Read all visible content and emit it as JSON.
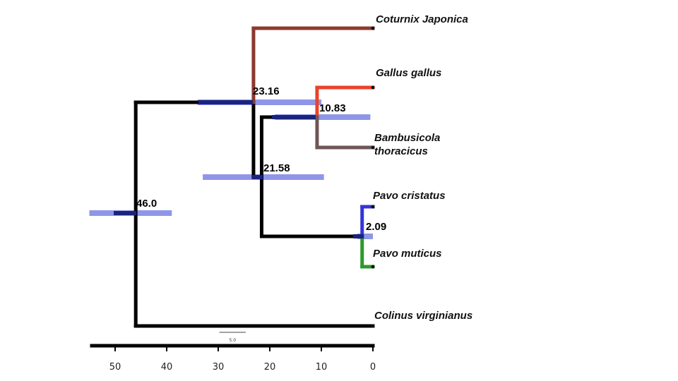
{
  "diagram": {
    "type": "time-calibrated phylogenetic tree",
    "taxa": [
      {
        "id": "coturnix",
        "lines": [
          "Coturnix Japonica"
        ],
        "color": "#8b3a2f"
      },
      {
        "id": "gallus",
        "lines": [
          "Gallus gallus"
        ],
        "color": "#e8432d"
      },
      {
        "id": "bambusicola",
        "lines": [
          "Bambusicola",
          "thoracicus"
        ],
        "color": "#6e5656"
      },
      {
        "id": "pavo_cristatus",
        "lines": [
          "Pavo cristatus"
        ],
        "color": "#3434d8"
      },
      {
        "id": "pavo_muticus",
        "lines": [
          "Pavo muticus"
        ],
        "color": "#2c9a2c"
      },
      {
        "id": "colinus",
        "lines": [
          "Colinus virginianus"
        ],
        "color": "#000000"
      }
    ],
    "nodes": [
      {
        "id": "root",
        "age": 46.0,
        "label": "46.0",
        "hpd": [
          55,
          39
        ]
      },
      {
        "id": "n2158",
        "age": 21.58,
        "label": "21.58",
        "hpd": [
          33,
          9.5
        ]
      },
      {
        "id": "n2316",
        "age": 23.16,
        "label": "23.16",
        "hpd": [
          34,
          10
        ]
      },
      {
        "id": "n1083",
        "age": 10.83,
        "label": "10.83",
        "hpd": [
          19,
          0.5
        ]
      },
      {
        "id": "n209",
        "age": 2.09,
        "label": "2.09",
        "hpd": [
          3,
          0
        ]
      }
    ],
    "axis": {
      "ticks": [
        50,
        40,
        30,
        20,
        10,
        0
      ],
      "tick_labels": [
        "50",
        "40",
        "30",
        "20",
        "10",
        "0"
      ],
      "range": [
        55,
        0
      ]
    },
    "scale_bar": {
      "label": "5.0",
      "length": 5.0
    },
    "colors": {
      "branch": "#000000",
      "hpd_bar": "#8f96e8",
      "hpd_core": "#1a237e"
    }
  }
}
